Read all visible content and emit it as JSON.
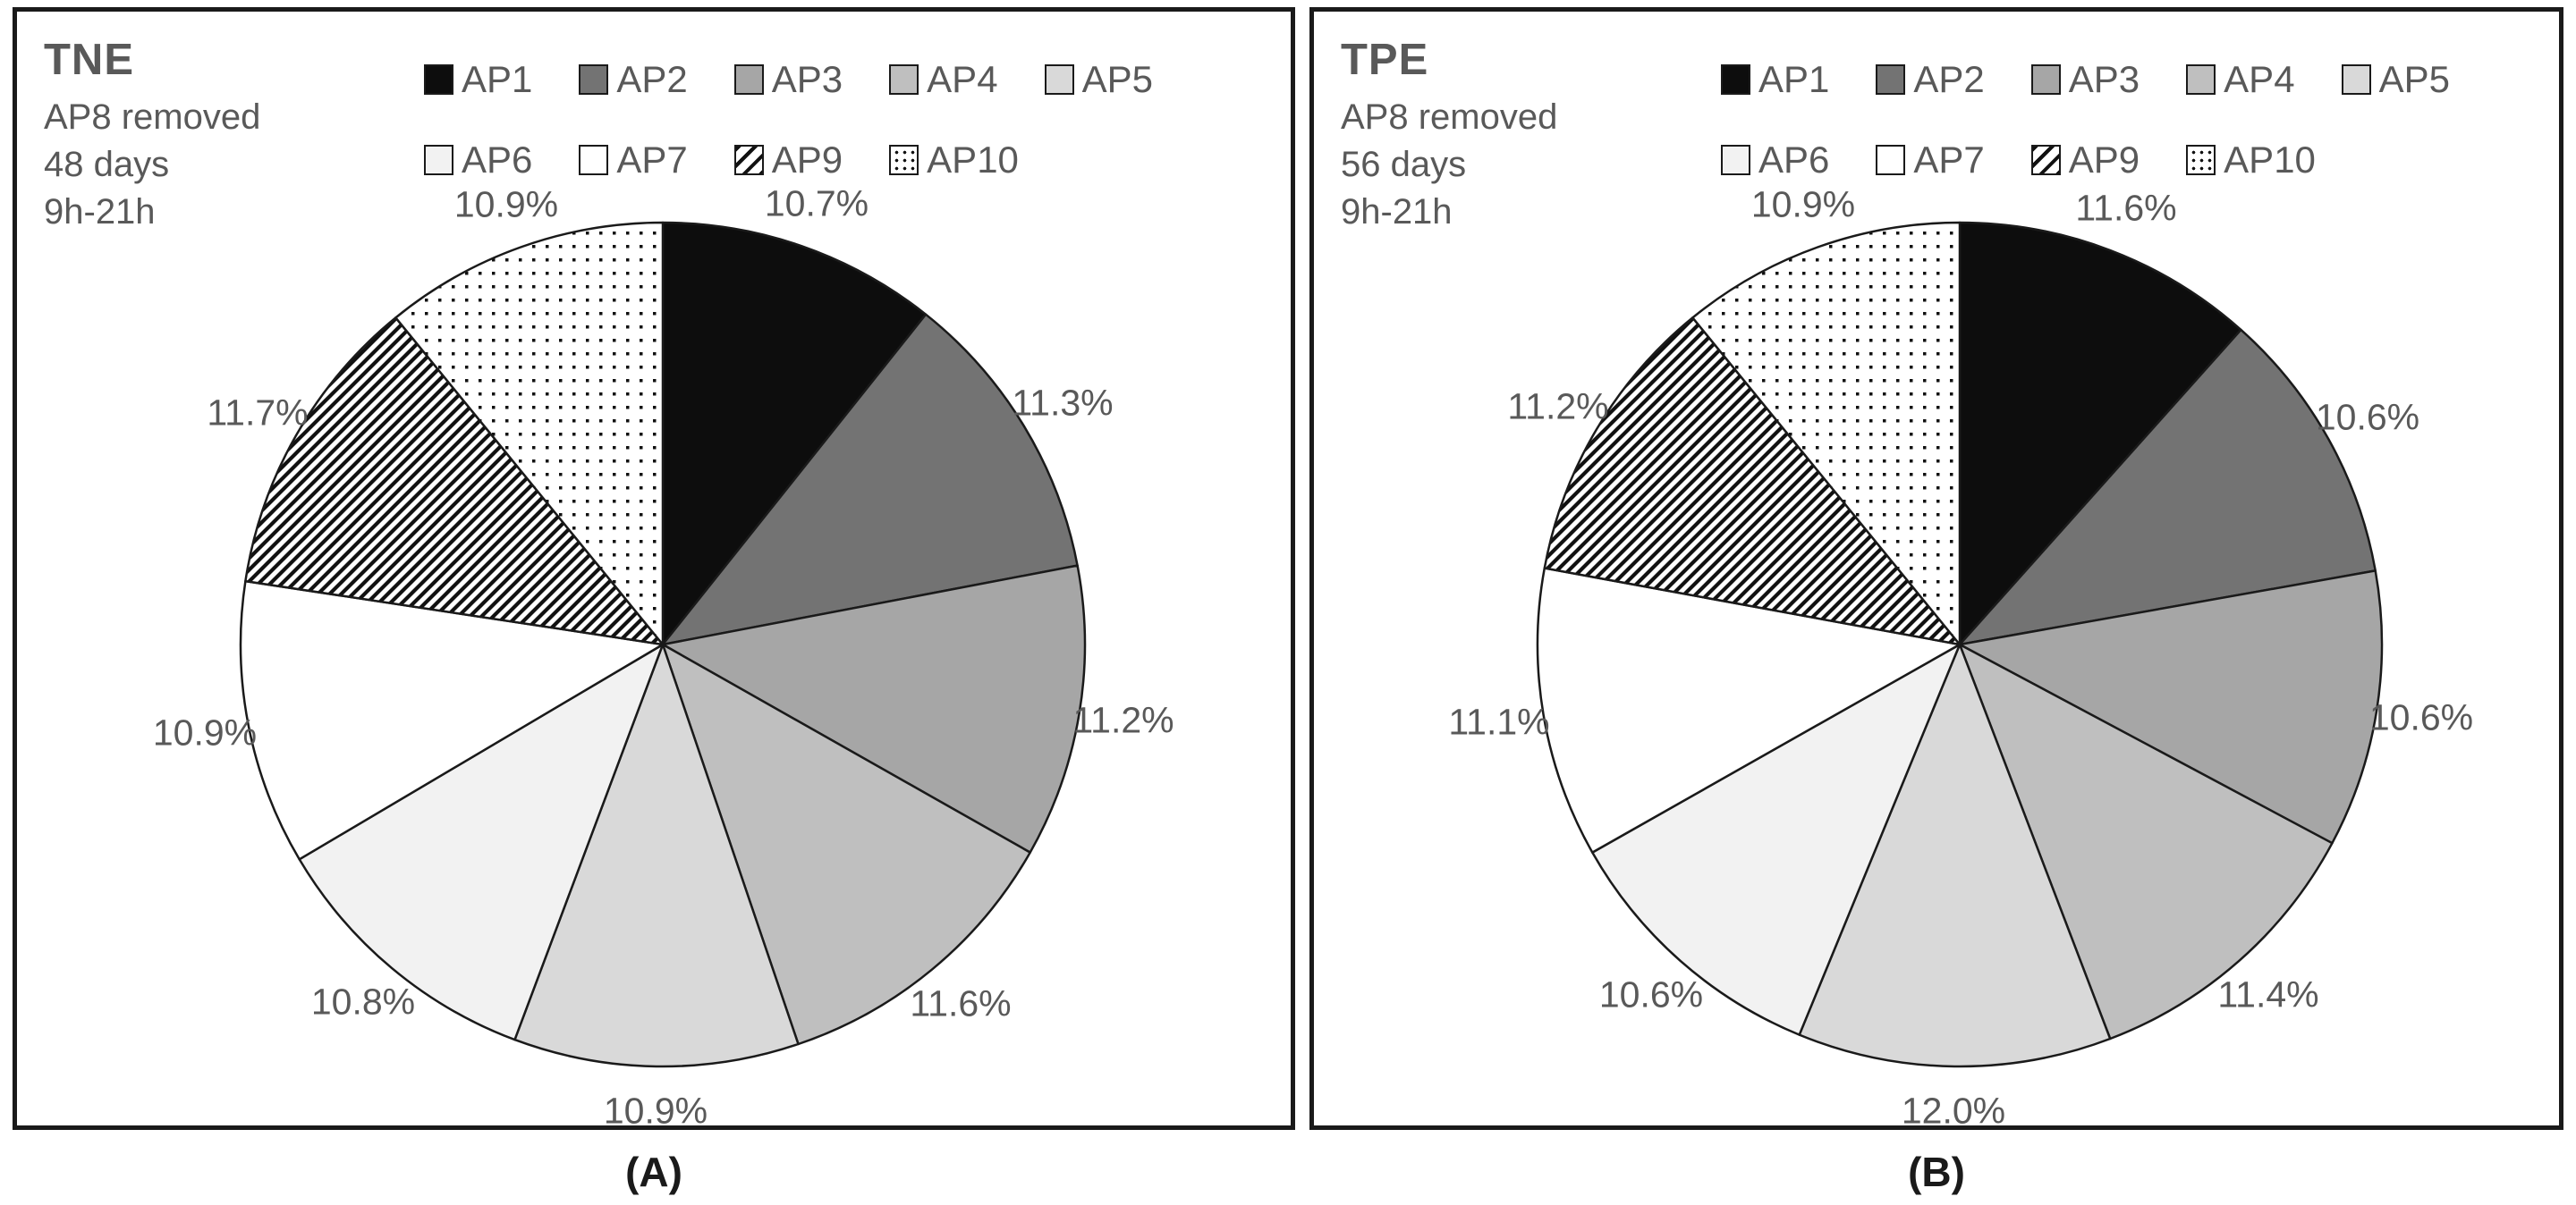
{
  "colors": {
    "text_gray": "#595959",
    "stroke_black": "#1a1a1a",
    "background": "#ffffff"
  },
  "legend": {
    "items": [
      {
        "label": "AP1",
        "fill": "#0d0d0d",
        "pattern": "solid"
      },
      {
        "label": "AP2",
        "fill": "#737373",
        "pattern": "solid"
      },
      {
        "label": "AP3",
        "fill": "#a6a6a6",
        "pattern": "solid"
      },
      {
        "label": "AP4",
        "fill": "#bfbfbf",
        "pattern": "solid"
      },
      {
        "label": "AP5",
        "fill": "#d9d9d9",
        "pattern": "solid"
      },
      {
        "label": "AP6",
        "fill": "#f2f2f2",
        "pattern": "solid"
      },
      {
        "label": "AP7",
        "fill": "#ffffff",
        "pattern": "solid"
      },
      {
        "label": "AP9",
        "fill": "#ffffff",
        "pattern": "hatch"
      },
      {
        "label": "AP10",
        "fill": "#ffffff",
        "pattern": "dots"
      }
    ],
    "row1_count": 5
  },
  "figure": {
    "panels": [
      {
        "title": "TNE",
        "caption": "(A)"
      },
      {
        "title": "TPE",
        "caption": "(B)"
      }
    ]
  },
  "chart_data": [
    {
      "type": "pie",
      "title": "TNE",
      "annotations": [
        "AP8 removed",
        "48 days",
        "9h-21h"
      ],
      "categories": [
        "AP1",
        "AP2",
        "AP3",
        "AP4",
        "AP5",
        "AP6",
        "AP7",
        "AP9",
        "AP10"
      ],
      "values": [
        10.7,
        11.3,
        11.2,
        11.6,
        10.9,
        10.8,
        10.9,
        11.7,
        10.9
      ],
      "labels": [
        "10.7%",
        "11.3%",
        "11.2%",
        "11.6%",
        "10.9%",
        "10.8%",
        "10.9%",
        "11.7%",
        "10.9%"
      ],
      "start_angle_deg": 0,
      "direction": "clockwise",
      "legend_position": "top"
    },
    {
      "type": "pie",
      "title": "TPE",
      "annotations": [
        "AP8 removed",
        "56 days",
        "9h-21h"
      ],
      "categories": [
        "AP1",
        "AP2",
        "AP3",
        "AP4",
        "AP5",
        "AP6",
        "AP7",
        "AP9",
        "AP10"
      ],
      "values": [
        11.6,
        10.6,
        10.6,
        11.4,
        12.0,
        10.6,
        11.1,
        11.2,
        10.9
      ],
      "labels": [
        "11.6%",
        "10.6%",
        "10.6%",
        "11.4%",
        "12.0%",
        "10.6%",
        "11.1%",
        "11.2%",
        "10.9%"
      ],
      "start_angle_deg": 0,
      "direction": "clockwise",
      "legend_position": "top"
    }
  ]
}
